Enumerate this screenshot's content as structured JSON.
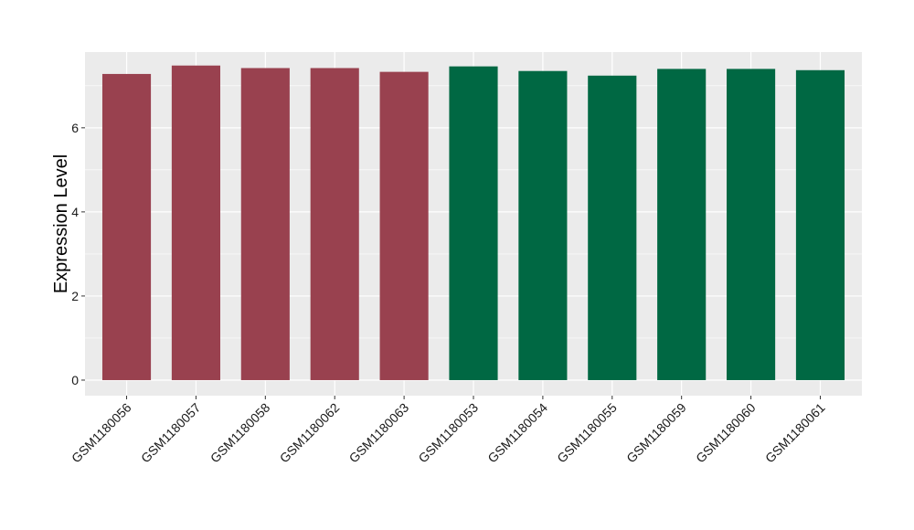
{
  "chart_data": {
    "type": "bar",
    "title": "",
    "xlabel": "",
    "ylabel": "Expression Level",
    "categories": [
      "GSM1180056",
      "GSM1180057",
      "GSM1180058",
      "GSM1180062",
      "GSM1180063",
      "GSM1180053",
      "GSM1180054",
      "GSM1180055",
      "GSM1180059",
      "GSM1180060",
      "GSM1180061"
    ],
    "values": [
      7.28,
      7.48,
      7.42,
      7.42,
      7.33,
      7.46,
      7.35,
      7.24,
      7.4,
      7.4,
      7.37
    ],
    "bar_colors": [
      "#99414f",
      "#99414f",
      "#99414f",
      "#99414f",
      "#99414f",
      "#006843",
      "#006843",
      "#006843",
      "#006843",
      "#006843",
      "#006843"
    ],
    "ylim": [
      -0.37,
      7.8
    ],
    "yticks": [
      0,
      2,
      4,
      6
    ],
    "ytick_labels": [
      "0",
      "2",
      "4",
      "6"
    ],
    "grid": true,
    "legend": "none",
    "colors": {
      "panel_background": "#ebebeb",
      "grid": "#ffffff",
      "tick_mark": "#333333"
    }
  }
}
